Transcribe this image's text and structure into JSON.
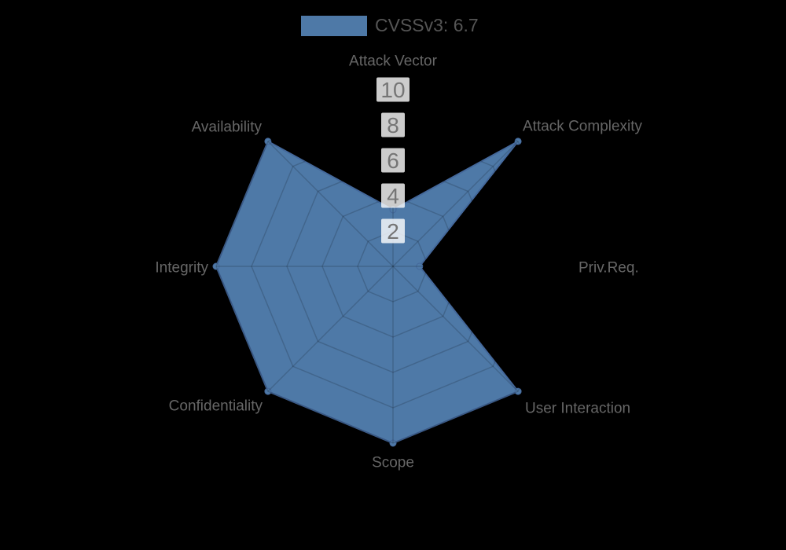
{
  "legend": {
    "label": "CVSSv3: 6.7",
    "swatch_color": "#4e79a7"
  },
  "chart_data": {
    "type": "radar",
    "title": "CVSSv3: 6.7",
    "categories": [
      "Attack Vector",
      "Attack Complexity",
      "Priv.Req.",
      "User Interaction",
      "Scope",
      "Confidentiality",
      "Integrity",
      "Availability"
    ],
    "series": [
      {
        "name": "CVSSv3: 6.7",
        "values": [
          3.2,
          10,
          1.5,
          10,
          10,
          10,
          10,
          10
        ]
      }
    ],
    "scale": {
      "min": 0,
      "max": 10,
      "step": 2,
      "ticks": [
        2,
        4,
        6,
        8,
        10
      ]
    },
    "grid": true,
    "legend_position": "top",
    "colors": {
      "background": "#000000",
      "fill": "#4e79a7",
      "stroke": "#44689b",
      "grid_line": "rgba(0,0,0,0.16)",
      "tick_backdrop": "rgba(255,255,255,0.8)",
      "tick_label": "#757575",
      "axis_label": "#666666"
    }
  }
}
